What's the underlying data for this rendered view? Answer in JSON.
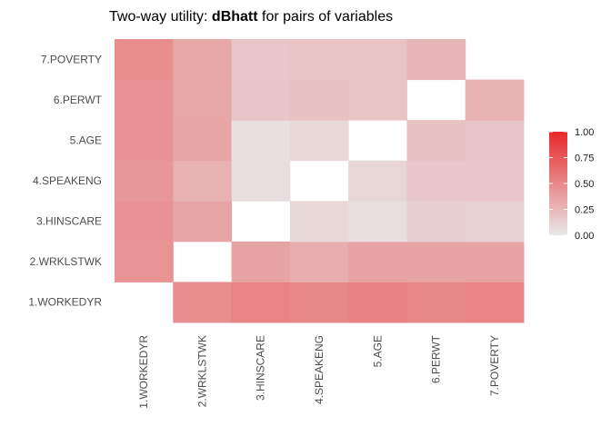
{
  "chart_data": {
    "type": "heatmap",
    "title_prefix": "Two-way utility: ",
    "title_bold": "dBhatt",
    "title_suffix": " for pairs of variables",
    "x_categories": [
      "1.WORKEDYR",
      "2.WRKLSTWK",
      "3.HINSCARE",
      "4.SPEAKENG",
      "5.AGE",
      "6.PERWT",
      "7.POVERTY"
    ],
    "y_categories": [
      "1.WORKEDYR",
      "2.WRKLSTWK",
      "3.HINSCARE",
      "4.SPEAKENG",
      "5.AGE",
      "6.PERWT",
      "7.POVERTY"
    ],
    "cells": [
      {
        "x": "2.WRKLSTWK",
        "y": "1.WORKEDYR",
        "value": 0.47
      },
      {
        "x": "3.HINSCARE",
        "y": "1.WORKEDYR",
        "value": 0.52
      },
      {
        "x": "4.SPEAKENG",
        "y": "1.WORKEDYR",
        "value": 0.5
      },
      {
        "x": "5.AGE",
        "y": "1.WORKEDYR",
        "value": 0.53
      },
      {
        "x": "6.PERWT",
        "y": "1.WORKEDYR",
        "value": 0.5
      },
      {
        "x": "7.POVERTY",
        "y": "1.WORKEDYR",
        "value": 0.52
      },
      {
        "x": "1.WORKEDYR",
        "y": "2.WRKLSTWK",
        "value": 0.44
      },
      {
        "x": "3.HINSCARE",
        "y": "2.WRKLSTWK",
        "value": 0.36
      },
      {
        "x": "4.SPEAKENG",
        "y": "2.WRKLSTWK",
        "value": 0.3
      },
      {
        "x": "5.AGE",
        "y": "2.WRKLSTWK",
        "value": 0.36
      },
      {
        "x": "6.PERWT",
        "y": "2.WRKLSTWK",
        "value": 0.36
      },
      {
        "x": "7.POVERTY",
        "y": "2.WRKLSTWK",
        "value": 0.36
      },
      {
        "x": "1.WORKEDYR",
        "y": "3.HINSCARE",
        "value": 0.45
      },
      {
        "x": "2.WRKLSTWK",
        "y": "3.HINSCARE",
        "value": 0.35
      },
      {
        "x": "4.SPEAKENG",
        "y": "3.HINSCARE",
        "value": 0.08
      },
      {
        "x": "5.AGE",
        "y": "3.HINSCARE",
        "value": 0.05
      },
      {
        "x": "6.PERWT",
        "y": "3.HINSCARE",
        "value": 0.13
      },
      {
        "x": "7.POVERTY",
        "y": "3.HINSCARE",
        "value": 0.12
      },
      {
        "x": "1.WORKEDYR",
        "y": "4.SPEAKENG",
        "value": 0.42
      },
      {
        "x": "2.WRKLSTWK",
        "y": "4.SPEAKENG",
        "value": 0.28
      },
      {
        "x": "3.HINSCARE",
        "y": "4.SPEAKENG",
        "value": 0.05
      },
      {
        "x": "5.AGE",
        "y": "4.SPEAKENG",
        "value": 0.1
      },
      {
        "x": "6.PERWT",
        "y": "4.SPEAKENG",
        "value": 0.17
      },
      {
        "x": "7.POVERTY",
        "y": "4.SPEAKENG",
        "value": 0.17
      },
      {
        "x": "1.WORKEDYR",
        "y": "5.AGE",
        "value": 0.45
      },
      {
        "x": "2.WRKLSTWK",
        "y": "5.AGE",
        "value": 0.35
      },
      {
        "x": "3.HINSCARE",
        "y": "5.AGE",
        "value": 0.04
      },
      {
        "x": "4.SPEAKENG",
        "y": "5.AGE",
        "value": 0.08
      },
      {
        "x": "6.PERWT",
        "y": "5.AGE",
        "value": 0.2
      },
      {
        "x": "7.POVERTY",
        "y": "5.AGE",
        "value": 0.18
      },
      {
        "x": "1.WORKEDYR",
        "y": "6.PERWT",
        "value": 0.45
      },
      {
        "x": "2.WRKLSTWK",
        "y": "6.PERWT",
        "value": 0.34
      },
      {
        "x": "3.HINSCARE",
        "y": "6.PERWT",
        "value": 0.18
      },
      {
        "x": "4.SPEAKENG",
        "y": "6.PERWT",
        "value": 0.2
      },
      {
        "x": "5.AGE",
        "y": "6.PERWT",
        "value": 0.19
      },
      {
        "x": "7.POVERTY",
        "y": "6.PERWT",
        "value": 0.28
      },
      {
        "x": "1.WORKEDYR",
        "y": "7.POVERTY",
        "value": 0.47
      },
      {
        "x": "2.WRKLSTWK",
        "y": "7.POVERTY",
        "value": 0.34
      },
      {
        "x": "3.HINSCARE",
        "y": "7.POVERTY",
        "value": 0.17
      },
      {
        "x": "4.SPEAKENG",
        "y": "7.POVERTY",
        "value": 0.19
      },
      {
        "x": "5.AGE",
        "y": "7.POVERTY",
        "value": 0.19
      },
      {
        "x": "6.PERWT",
        "y": "7.POVERTY",
        "value": 0.26
      }
    ],
    "color_scale": {
      "low": "#e8e8e8",
      "high": "#e8282a",
      "limits": [
        0,
        1
      ]
    },
    "legend": {
      "position": "right",
      "ticks": [
        "1.00",
        "0.75",
        "0.50",
        "0.25",
        "0.00"
      ]
    },
    "grid": false
  }
}
